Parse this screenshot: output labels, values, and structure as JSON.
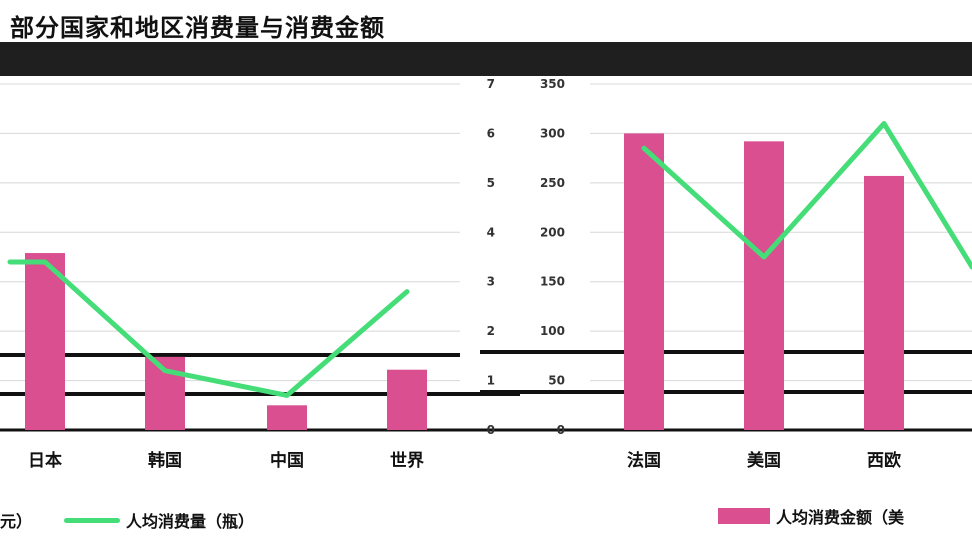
{
  "title": "部分国家和地区消费量与消费金额",
  "chart_data": {
    "type": "bar",
    "categories": [
      "日本",
      "韩国",
      "中国",
      "世界",
      "法国",
      "美国",
      "西欧"
    ],
    "series": [
      {
        "name": "人均消费金额（美元）",
        "type": "bar",
        "axis": "left",
        "values": [
          179,
          74,
          25,
          61,
          300,
          292,
          257
        ],
        "color": "#d94f8f"
      },
      {
        "name": "人均消费量（瓶）",
        "type": "line",
        "axis": "right",
        "values": [
          3.4,
          1.2,
          0.7,
          2.8,
          5.7,
          3.5,
          6.2
        ],
        "color": "#44dd77"
      }
    ],
    "left_axis": {
      "ticks": [
        "0",
        "50",
        "100",
        "150",
        "200",
        "250",
        "300",
        "350"
      ],
      "ylim": [
        0,
        350
      ]
    },
    "right_axis": {
      "ticks": [
        "0",
        "1",
        "2",
        "3",
        "4",
        "5",
        "6",
        "7"
      ],
      "ylim": [
        0,
        7
      ]
    },
    "grid": true,
    "legend_position": "bottom"
  },
  "legend": {
    "line_label_prefix": "元）",
    "line_label": "人均消费量（瓶）",
    "bar_label": "人均消费金额（美"
  }
}
